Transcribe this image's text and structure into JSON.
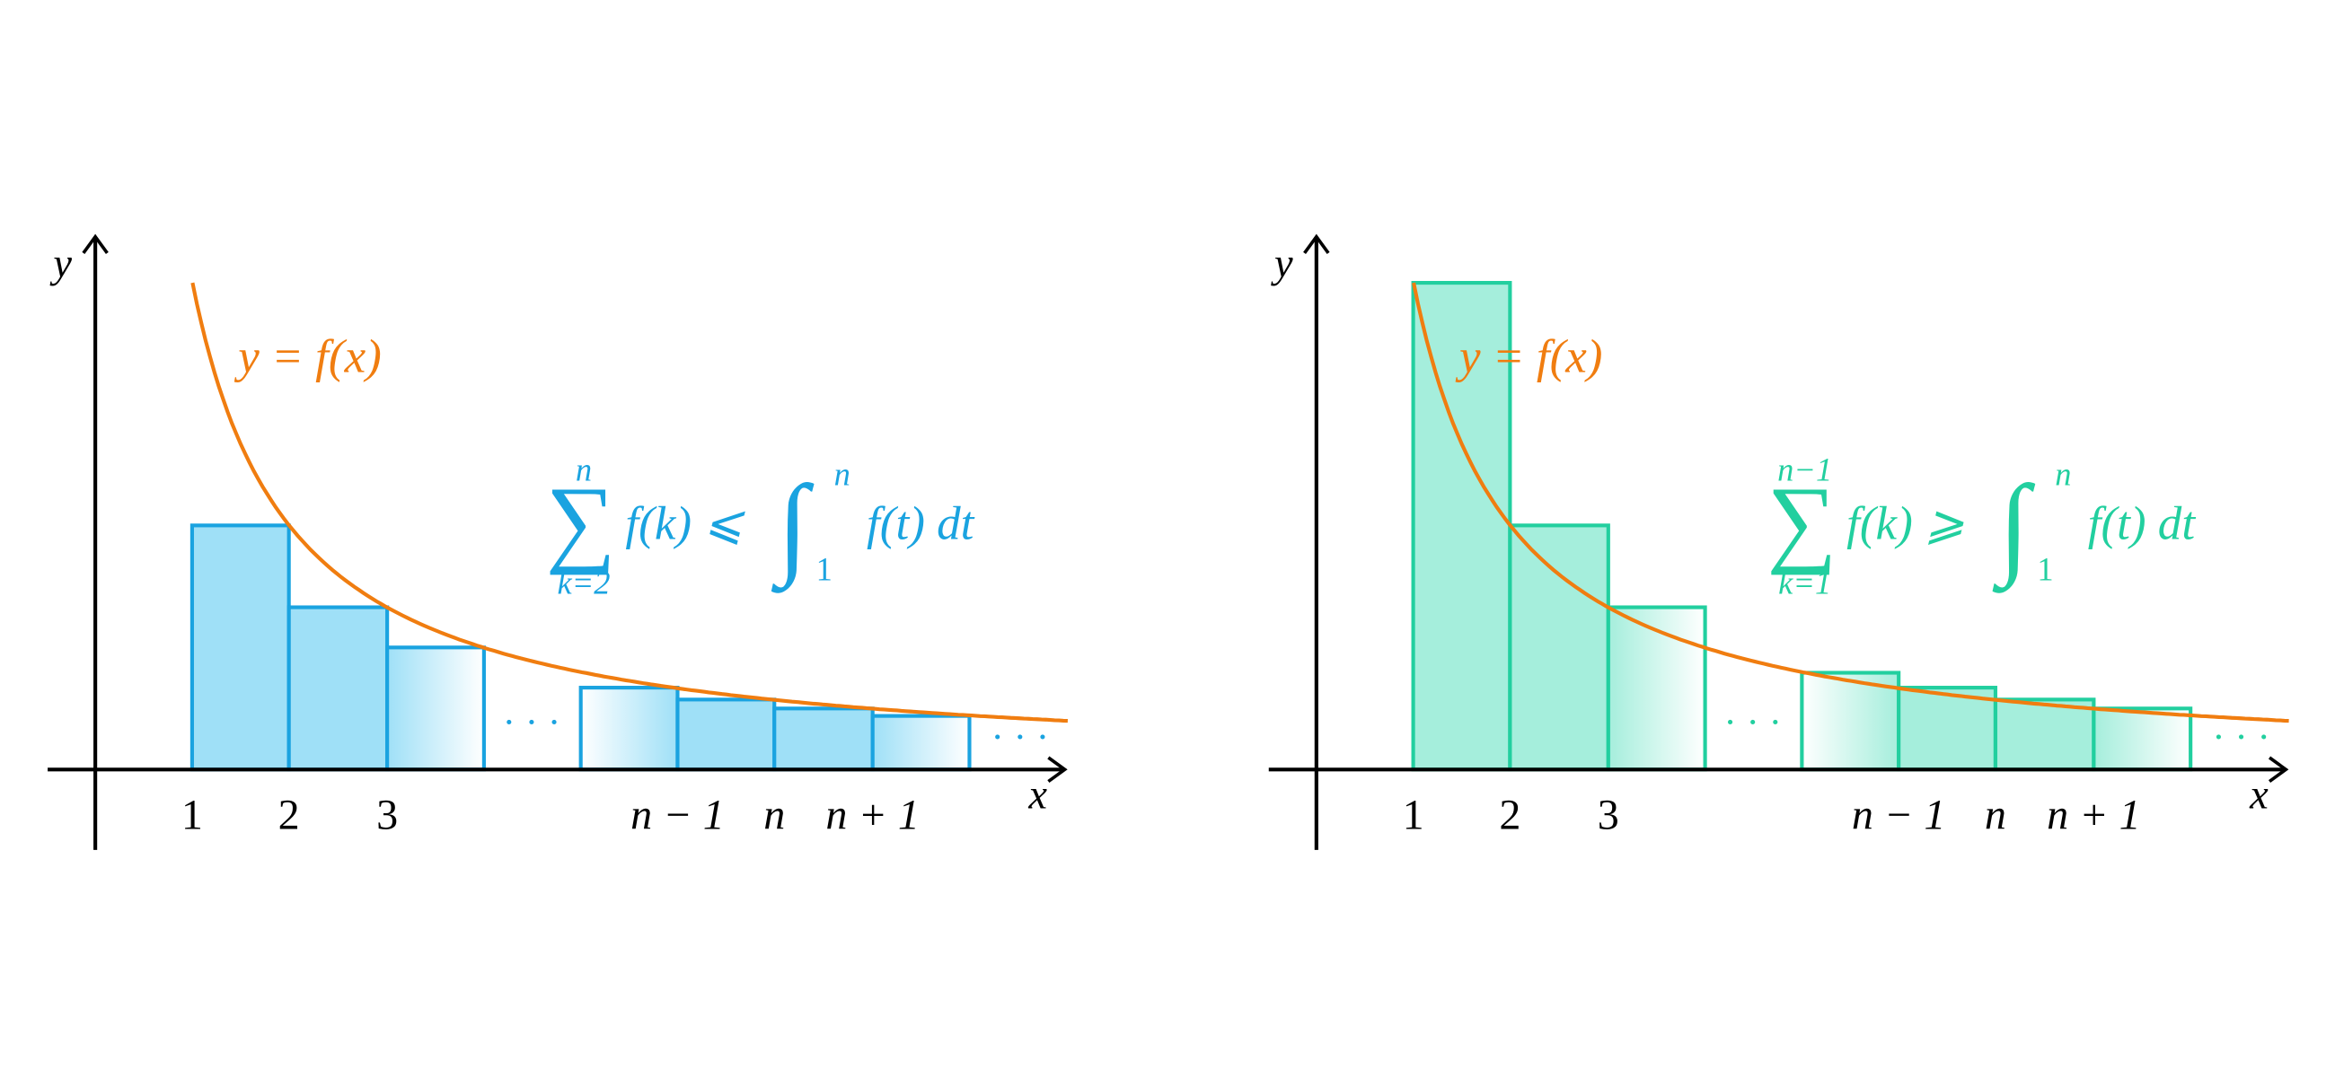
{
  "panels": [
    {
      "axis_y": "y",
      "axis_x": "x",
      "curve_label": "y = f(x)",
      "ticks": [
        "1",
        "2",
        "3",
        "n − 1",
        "n",
        "n + 1"
      ],
      "ellipsis": [
        "· · ·",
        "· · ·"
      ],
      "formula": {
        "sum": "∑",
        "sum_upper": "n",
        "sum_lower": "k=2",
        "lhs": "f(k) ⩽",
        "integral": "∫",
        "int_lower": "1",
        "int_upper": "n",
        "rhs": "f(t) dt"
      }
    },
    {
      "axis_y": "y",
      "axis_x": "x",
      "curve_label": "y = f(x)",
      "ticks": [
        "1",
        "2",
        "3",
        "n − 1",
        "n",
        "n + 1"
      ],
      "ellipsis": [
        "· · ·",
        "· · ·"
      ],
      "formula": {
        "sum": "∑",
        "sum_upper": "n−1",
        "sum_lower": "k=1",
        "lhs": "f(k) ⩾",
        "integral": "∫",
        "int_lower": "1",
        "int_upper": "n",
        "rhs": "f(t) dt"
      }
    }
  ]
}
